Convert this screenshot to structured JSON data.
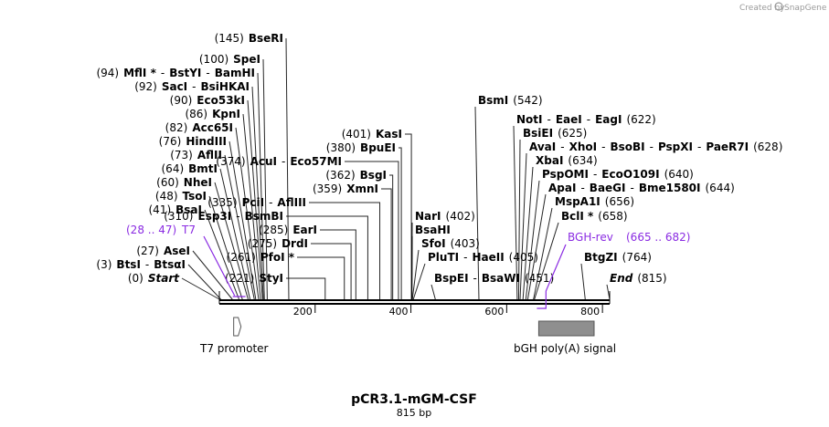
{
  "watermark": {
    "prefix": "Created by",
    "brand": "SnapGene"
  },
  "plasmid": {
    "name": "pCR3.1-mGM-CSF",
    "length_label": "815 bp",
    "length": 815
  },
  "ticks": [
    {
      "pos": 200,
      "label": "200"
    },
    {
      "pos": 400,
      "label": "400"
    },
    {
      "pos": 600,
      "label": "600"
    },
    {
      "pos": 800,
      "label": "800"
    }
  ],
  "features": [
    {
      "name": "T7 promoter",
      "start": 28,
      "end": 47,
      "kind": "arrow"
    },
    {
      "name": "bGH poly(A) signal",
      "start": 665,
      "end": 815,
      "kind": "box"
    }
  ],
  "primers": [
    {
      "pos_label": "(28 .. 47)",
      "name": "T7",
      "start": 28,
      "end": 47
    },
    {
      "pos_label": "(665 .. 682)",
      "name": "BGH-rev",
      "start": 665,
      "end": 682
    }
  ],
  "left_labels": [
    {
      "pos": 145,
      "text": "(145)  BseRI",
      "parts": [
        {
          "t": "(145)",
          "s": "pos"
        },
        {
          "t": "BseRI",
          "s": "b"
        }
      ]
    },
    {
      "pos": 100,
      "parts": [
        {
          "t": "(100)",
          "s": "pos"
        },
        {
          "t": "SpeI",
          "s": "b"
        }
      ]
    },
    {
      "pos": 94,
      "parts": [
        {
          "t": "(94)",
          "s": "pos"
        },
        {
          "t": "MflI *",
          "s": "b"
        },
        {
          "t": "-",
          "s": "sep"
        },
        {
          "t": "BstYI",
          "s": "b"
        },
        {
          "t": "-",
          "s": "sep"
        },
        {
          "t": "BamHI",
          "s": "b"
        }
      ]
    },
    {
      "pos": 92,
      "parts": [
        {
          "t": "(92)",
          "s": "pos"
        },
        {
          "t": "SacI",
          "s": "b"
        },
        {
          "t": "-",
          "s": "sep"
        },
        {
          "t": "BsiHKAI",
          "s": "b"
        }
      ]
    },
    {
      "pos": 90,
      "parts": [
        {
          "t": "(90)",
          "s": "pos"
        },
        {
          "t": "Eco53kI",
          "s": "b"
        }
      ]
    },
    {
      "pos": 86,
      "parts": [
        {
          "t": "(86)",
          "s": "pos"
        },
        {
          "t": "KpnI",
          "s": "b"
        }
      ]
    },
    {
      "pos": 82,
      "parts": [
        {
          "t": "(82)",
          "s": "pos"
        },
        {
          "t": "Acc65I",
          "s": "b"
        }
      ]
    },
    {
      "pos": 76,
      "parts": [
        {
          "t": "(76)",
          "s": "pos"
        },
        {
          "t": "HindIII",
          "s": "b"
        }
      ]
    },
    {
      "pos": 73,
      "parts": [
        {
          "t": "(73)",
          "s": "pos"
        },
        {
          "t": "AflII",
          "s": "b"
        }
      ]
    },
    {
      "pos": 64,
      "parts": [
        {
          "t": "(64)",
          "s": "pos"
        },
        {
          "t": "BmtI",
          "s": "b"
        }
      ]
    },
    {
      "pos": 60,
      "parts": [
        {
          "t": "(60)",
          "s": "pos"
        },
        {
          "t": "NheI",
          "s": "b"
        }
      ]
    },
    {
      "pos": 48,
      "parts": [
        {
          "t": "(48)",
          "s": "pos"
        },
        {
          "t": "TsoI",
          "s": "b"
        }
      ]
    },
    {
      "pos": 41,
      "parts": [
        {
          "t": "(41)",
          "s": "pos"
        },
        {
          "t": "BsaI",
          "s": "b"
        }
      ]
    },
    {
      "pos": 27,
      "parts": [
        {
          "t": "(27)",
          "s": "pos"
        },
        {
          "t": "AseI",
          "s": "b"
        }
      ]
    },
    {
      "pos": 3,
      "parts": [
        {
          "t": "(3)",
          "s": "pos"
        },
        {
          "t": "BtsI",
          "s": "b"
        },
        {
          "t": "-",
          "s": "sep"
        },
        {
          "t": "BtsαI",
          "s": "b"
        }
      ]
    },
    {
      "pos": 0,
      "parts": [
        {
          "t": "(0)",
          "s": "pos"
        },
        {
          "t": "Start",
          "s": "i"
        }
      ]
    }
  ],
  "mid_labels": [
    {
      "pos": 374,
      "parts": [
        {
          "t": "(374)",
          "s": "pos"
        },
        {
          "t": "AcuI",
          "s": "b"
        },
        {
          "t": "-",
          "s": "sep"
        },
        {
          "t": "Eco57MI",
          "s": "b"
        }
      ]
    },
    {
      "pos": 335,
      "parts": [
        {
          "t": "(335)",
          "s": "pos"
        },
        {
          "t": "PciI",
          "s": "b"
        },
        {
          "t": "-",
          "s": "sep"
        },
        {
          "t": "AflIII",
          "s": "b"
        }
      ]
    },
    {
      "pos": 310,
      "parts": [
        {
          "t": "(310)",
          "s": "pos"
        },
        {
          "t": "Esp3I",
          "s": "b"
        },
        {
          "t": "-",
          "s": "sep"
        },
        {
          "t": "BsmBI",
          "s": "b"
        }
      ]
    },
    {
      "pos": 285,
      "parts": [
        {
          "t": "(285)",
          "s": "pos"
        },
        {
          "t": "EarI",
          "s": "b"
        }
      ]
    },
    {
      "pos": 275,
      "parts": [
        {
          "t": "(275)",
          "s": "pos"
        },
        {
          "t": "DrdI",
          "s": "b"
        }
      ]
    },
    {
      "pos": 261,
      "parts": [
        {
          "t": "(261)",
          "s": "pos"
        },
        {
          "t": "PfoI *",
          "s": "b"
        }
      ]
    },
    {
      "pos": 221,
      "parts": [
        {
          "t": "(221)",
          "s": "pos"
        },
        {
          "t": "StyI",
          "s": "b"
        }
      ]
    },
    {
      "pos": 401,
      "parts": [
        {
          "t": "(401)",
          "s": "pos"
        },
        {
          "t": "KasI",
          "s": "b"
        }
      ]
    },
    {
      "pos": 380,
      "parts": [
        {
          "t": "(380)",
          "s": "pos"
        },
        {
          "t": "BpuEI",
          "s": "b"
        }
      ]
    },
    {
      "pos": 359,
      "parts": [
        {
          "t": "(359)",
          "s": "pos"
        },
        {
          "t": "XmnI",
          "s": "b"
        }
      ]
    },
    {
      "pos": 362,
      "parts": [
        {
          "t": "(362)",
          "s": "pos"
        },
        {
          "t": "BsgI",
          "s": "b"
        }
      ]
    }
  ],
  "right_labels": [
    {
      "pos": 542,
      "parts": [
        {
          "t": "BsmI",
          "s": "b"
        },
        {
          "t": "(542)",
          "s": "pos"
        }
      ]
    },
    {
      "pos": 622,
      "parts": [
        {
          "t": "NotI",
          "s": "b"
        },
        {
          "t": "-",
          "s": "sep"
        },
        {
          "t": "EaeI",
          "s": "b"
        },
        {
          "t": "-",
          "s": "sep"
        },
        {
          "t": "EagI",
          "s": "b"
        },
        {
          "t": "(622)",
          "s": "pos"
        }
      ]
    },
    {
      "pos": 625,
      "parts": [
        {
          "t": "BsiEI",
          "s": "b"
        },
        {
          "t": "(625)",
          "s": "pos"
        }
      ]
    },
    {
      "pos": 628,
      "parts": [
        {
          "t": "AvaI",
          "s": "b"
        },
        {
          "t": "-",
          "s": "sep"
        },
        {
          "t": "XhoI",
          "s": "b"
        },
        {
          "t": "-",
          "s": "sep"
        },
        {
          "t": "BsoBI",
          "s": "b"
        },
        {
          "t": "-",
          "s": "sep"
        },
        {
          "t": "PspXI",
          "s": "b"
        },
        {
          "t": "-",
          "s": "sep"
        },
        {
          "t": "PaeR7I",
          "s": "b"
        },
        {
          "t": "(628)",
          "s": "pos"
        }
      ]
    },
    {
      "pos": 634,
      "parts": [
        {
          "t": "XbaI",
          "s": "b"
        },
        {
          "t": "(634)",
          "s": "pos"
        }
      ]
    },
    {
      "pos": 640,
      "parts": [
        {
          "t": "PspOMI",
          "s": "b"
        },
        {
          "t": "-",
          "s": "sep"
        },
        {
          "t": "EcoO109I",
          "s": "b"
        },
        {
          "t": "(640)",
          "s": "pos"
        }
      ]
    },
    {
      "pos": 644,
      "parts": [
        {
          "t": "ApaI",
          "s": "b"
        },
        {
          "t": "-",
          "s": "sep"
        },
        {
          "t": "BaeGI",
          "s": "b"
        },
        {
          "t": "-",
          "s": "sep"
        },
        {
          "t": "Bme1580I",
          "s": "b"
        },
        {
          "t": "(644)",
          "s": "pos"
        }
      ]
    },
    {
      "pos": 656,
      "parts": [
        {
          "t": "MspA1I",
          "s": "b"
        },
        {
          "t": "(656)",
          "s": "pos"
        }
      ]
    },
    {
      "pos": 658,
      "parts": [
        {
          "t": "BclI *",
          "s": "b"
        },
        {
          "t": "(658)",
          "s": "pos"
        }
      ]
    },
    {
      "pos": 402,
      "parts": [
        {
          "t": "NarI",
          "s": "b"
        },
        {
          "t": "(402)",
          "s": "pos"
        }
      ]
    },
    {
      "pos": 402,
      "parts": [
        {
          "t": "BsaHI",
          "s": "b"
        }
      ]
    },
    {
      "pos": 403,
      "parts": [
        {
          "t": "SfoI",
          "s": "b"
        },
        {
          "t": "(403)",
          "s": "pos"
        }
      ]
    },
    {
      "pos": 405,
      "parts": [
        {
          "t": "PluTI",
          "s": "b"
        },
        {
          "t": "-",
          "s": "sep"
        },
        {
          "t": "HaeII",
          "s": "b"
        },
        {
          "t": "(405)",
          "s": "pos"
        }
      ]
    },
    {
      "pos": 451,
      "parts": [
        {
          "t": "BspEI",
          "s": "b"
        },
        {
          "t": "-",
          "s": "sep"
        },
        {
          "t": "BsaWI",
          "s": "b"
        },
        {
          "t": "(451)",
          "s": "pos"
        }
      ]
    },
    {
      "pos": 764,
      "parts": [
        {
          "t": "BtgZI",
          "s": "b"
        },
        {
          "t": "(764)",
          "s": "pos"
        }
      ]
    },
    {
      "pos": 815,
      "parts": [
        {
          "t": "End",
          "s": "i"
        },
        {
          "t": "(815)",
          "s": "pos"
        }
      ]
    }
  ]
}
